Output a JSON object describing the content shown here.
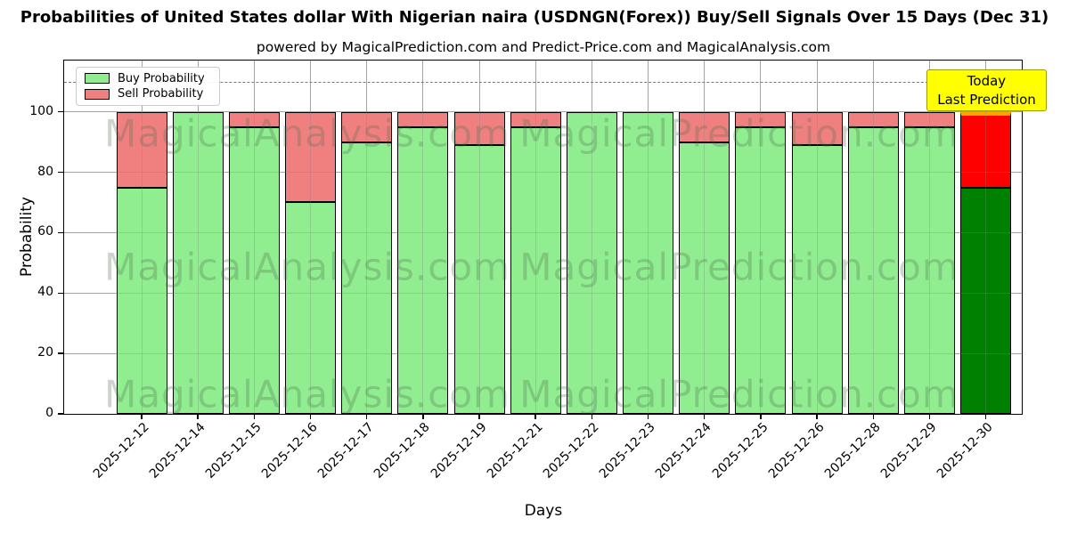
{
  "watermarks": {
    "left": "MagicalAnalysis.com",
    "right": "MagicalPrediction.com"
  },
  "annotation": {
    "line1": "Today",
    "line2": "Last Prediction",
    "bg_color": "#ffff00",
    "border_color": "#9c9c00"
  },
  "colors": {
    "bar_edge": "#000000",
    "grid": "#b5b5b5",
    "dashed_line": "#7a7a7a",
    "today_buy": "#008000",
    "today_sell": "#ff0000",
    "today_top_edge": "#ffa500"
  },
  "chart_data": {
    "type": "bar",
    "stacked": true,
    "title": "Probabilities of United States dollar With Nigerian naira (USDNGN(Forex)) Buy/Sell Signals Over 15 Days (Dec 31)",
    "subtitle": "powered by MagicalPrediction.com and Predict-Price.com and MagicalAnalysis.com",
    "xlabel": "Days",
    "ylabel": "Probability",
    "categories": [
      "2025-12-12",
      "2025-12-14",
      "2025-12-15",
      "2025-12-16",
      "2025-12-17",
      "2025-12-18",
      "2025-12-19",
      "2025-12-21",
      "2025-12-22",
      "2025-12-23",
      "2025-12-24",
      "2025-12-25",
      "2025-12-26",
      "2025-12-28",
      "2025-12-29",
      "2025-12-30"
    ],
    "series": [
      {
        "name": "Buy Probability",
        "color": "#90ee90",
        "values": [
          75,
          100,
          95,
          70,
          90,
          95,
          89,
          95,
          100,
          100,
          90,
          95,
          89,
          95,
          95,
          75
        ]
      },
      {
        "name": "Sell Probability",
        "color": "#f08080",
        "values": [
          25,
          0,
          5,
          30,
          10,
          5,
          11,
          5,
          0,
          0,
          10,
          5,
          11,
          5,
          5,
          25
        ]
      }
    ],
    "today_index": 15,
    "yticks": [
      0,
      20,
      40,
      60,
      80,
      100
    ],
    "ylim": [
      0,
      117
    ],
    "dashed_line_y": 110,
    "grid": true,
    "legend_position": "upper left"
  }
}
